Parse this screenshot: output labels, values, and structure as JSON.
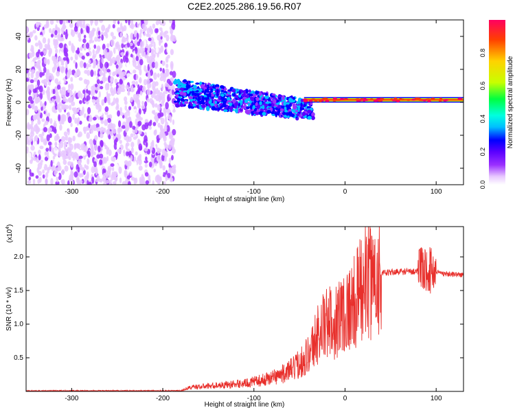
{
  "title": "C2E2.2025.286.19.56.R07",
  "chart_data": [
    {
      "type": "heatmap",
      "name": "spectrogram",
      "xlabel": "Height of straight line (km)",
      "ylabel": "Frequency (Hz)",
      "xlim": [
        -350,
        130
      ],
      "ylim": [
        -50,
        50
      ],
      "xticks": [
        -300,
        -200,
        -100,
        0,
        100
      ],
      "yticks": [
        -40,
        -20,
        0,
        20,
        40
      ],
      "colorbar": {
        "label": "Normalized spectral amplitude",
        "range": [
          0,
          1
        ],
        "ticks": [
          "0.0",
          "0.2",
          "0.4",
          "0.6",
          "0.8"
        ],
        "colors": [
          "#ffffff",
          "#e8c8ff",
          "#9b30ff",
          "#5a00ff",
          "#0000ff",
          "#00bfff",
          "#00ffe0",
          "#00ff40",
          "#c8ff00",
          "#ffd200",
          "#ff4000",
          "#ff0060"
        ]
      },
      "regions": [
        {
          "description": "broadband noise",
          "x_range": [
            -350,
            -187
          ],
          "y_range": [
            -50,
            50
          ],
          "amplitude": 0.1
        },
        {
          "description": "transition wedge",
          "x_range": [
            -187,
            -35
          ],
          "center_hz": [
            6,
            -5
          ],
          "half_width_hz": [
            8,
            6
          ],
          "amplitude": 0.35
        },
        {
          "description": "carrier line",
          "x_range": [
            -45,
            130
          ],
          "center_hz": 1.5,
          "amplitude": 0.95
        }
      ]
    },
    {
      "type": "line",
      "name": "snr",
      "xlabel": "Height of straight line (km)",
      "ylabel": "SNR (10 * v/v)",
      "scale_label": "(x10",
      "scale_exponent": "4",
      "scale_suffix": ")",
      "xlim": [
        -350,
        130
      ],
      "ylim": [
        0,
        2.45
      ],
      "xticks": [
        -300,
        -200,
        -100,
        0,
        100
      ],
      "yticks": [
        "0.5",
        "1.0",
        "1.5",
        "2.0"
      ],
      "color": "#e8302c",
      "envelope": {
        "x": [
          -350,
          -180,
          -170,
          -140,
          -110,
          -90,
          -70,
          -55,
          -45,
          -40,
          -35,
          -30,
          -25,
          -20,
          -10,
          -5,
          0,
          5,
          10,
          15,
          20,
          30,
          40,
          50,
          60,
          70,
          80,
          85,
          90,
          95,
          100,
          110,
          120,
          130
        ],
        "y": [
          0.01,
          0.01,
          0.06,
          0.09,
          0.12,
          0.17,
          0.25,
          0.35,
          0.5,
          0.55,
          0.7,
          0.85,
          0.95,
          1.0,
          1.05,
          1.15,
          1.2,
          1.25,
          1.3,
          1.45,
          1.6,
          1.7,
          1.75,
          1.77,
          1.78,
          1.78,
          1.79,
          1.8,
          1.82,
          1.8,
          1.78,
          1.75,
          1.74,
          1.73
        ]
      }
    }
  ]
}
